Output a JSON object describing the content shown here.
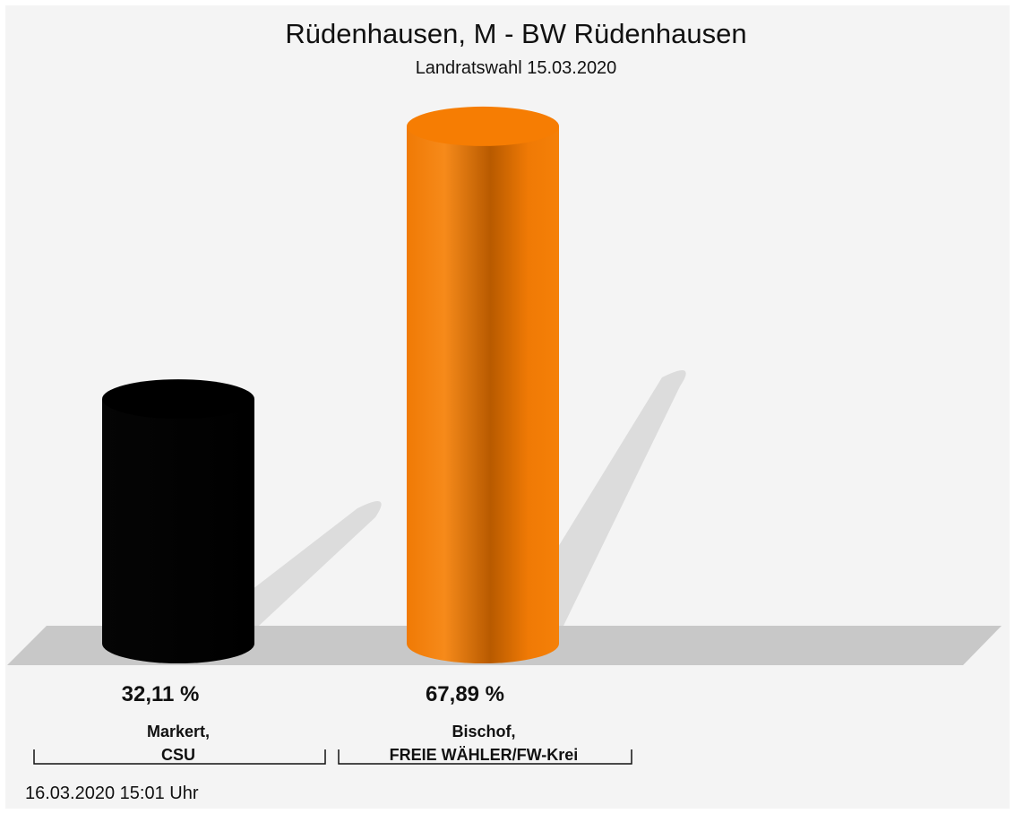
{
  "chart_data": {
    "type": "bar",
    "title": "Rüdenhausen, M - BW Rüdenhausen",
    "subtitle": "Landratswahl 15.03.2020",
    "ylim": [
      0,
      70
    ],
    "categories": [
      {
        "line1": "Markert,",
        "line2": "CSU"
      },
      {
        "line1": "Bischof,",
        "line2": "FREIE WÄHLER/FW-Krei"
      }
    ],
    "values": [
      32.11,
      67.89
    ],
    "value_labels": [
      "32,11 %",
      "67,89 %"
    ],
    "colors": [
      "#000000",
      "#f58008"
    ],
    "grid": false
  },
  "footer": {
    "timestamp": "16.03.2020 15:01 Uhr"
  }
}
